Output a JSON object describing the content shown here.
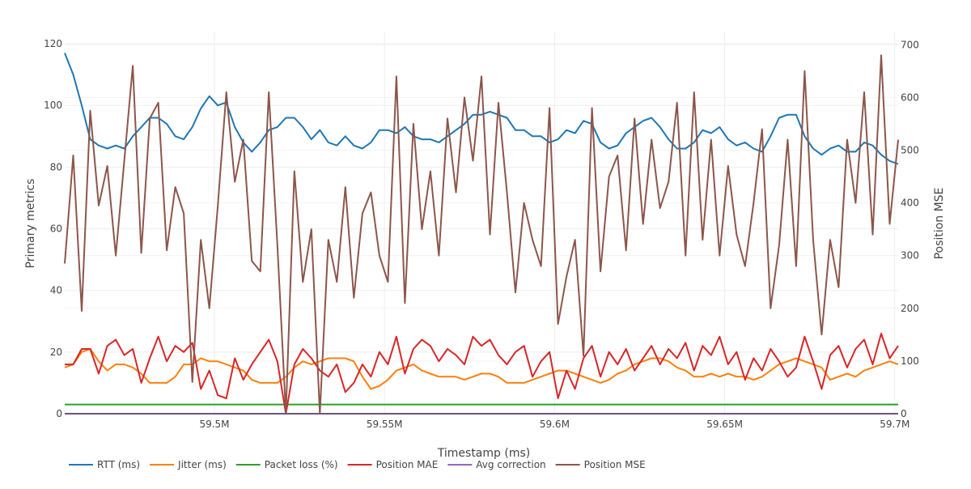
{
  "chart_data": {
    "type": "line",
    "xlabel": "Timestamp (ms)",
    "ylabel": "Primary metrics",
    "y2label": "Position MSE",
    "ylim": [
      0,
      123.7
    ],
    "y2lim": [
      0,
      723.5
    ],
    "xlim": [
      59456000,
      59701000
    ],
    "x_ticks": [
      {
        "value": 59500000,
        "label": "59.5M"
      },
      {
        "value": 59550000,
        "label": "59.55M"
      },
      {
        "value": 59600000,
        "label": "59.6M"
      },
      {
        "value": 59650000,
        "label": "59.65M"
      },
      {
        "value": 59700000,
        "label": "59.7M"
      }
    ],
    "y_ticks": [
      {
        "value": 0,
        "label": "0"
      },
      {
        "value": 20,
        "label": "20"
      },
      {
        "value": 40,
        "label": "40"
      },
      {
        "value": 60,
        "label": "60"
      },
      {
        "value": 80,
        "label": "80"
      },
      {
        "value": 100,
        "label": "100"
      },
      {
        "value": 120,
        "label": "120"
      }
    ],
    "y2_ticks": [
      {
        "value": 0,
        "label": "0"
      },
      {
        "value": 100,
        "label": "100"
      },
      {
        "value": 200,
        "label": "200"
      },
      {
        "value": 300,
        "label": "300"
      },
      {
        "value": 400,
        "label": "400"
      },
      {
        "value": 500,
        "label": "500"
      },
      {
        "value": 600,
        "label": "600"
      },
      {
        "value": 700,
        "label": "700"
      }
    ],
    "grid": true,
    "legend_placement": "bottom-left",
    "x": [
      59456000,
      59458500,
      59461000,
      59463500,
      59466000,
      59468500,
      59471000,
      59473500,
      59476000,
      59478500,
      59481000,
      59483500,
      59486000,
      59488500,
      59491000,
      59493500,
      59496000,
      59498500,
      59501000,
      59503500,
      59506000,
      59508500,
      59511000,
      59513500,
      59516000,
      59518500,
      59521000,
      59523500,
      59526000,
      59528500,
      59531000,
      59533500,
      59536000,
      59538500,
      59541000,
      59543500,
      59546000,
      59548500,
      59551000,
      59553500,
      59556000,
      59558500,
      59561000,
      59563500,
      59566000,
      59568500,
      59571000,
      59573500,
      59576000,
      59578500,
      59581000,
      59583500,
      59586000,
      59588500,
      59591000,
      59593500,
      59596000,
      59598500,
      59601000,
      59603500,
      59606000,
      59608500,
      59611000,
      59613500,
      59616000,
      59618500,
      59621000,
      59623500,
      59626000,
      59628500,
      59631000,
      59633500,
      59636000,
      59638500,
      59641000,
      59643500,
      59646000,
      59648500,
      59651000,
      59653500,
      59656000,
      59658500,
      59661000,
      59663500,
      59666000,
      59668500,
      59671000,
      59673500,
      59676000,
      59678500,
      59681000,
      59683500,
      59686000,
      59688500,
      59691000,
      59693500,
      59696000,
      59698500,
      59701000
    ],
    "series": [
      {
        "name": "RTT (ms)",
        "axis": "y",
        "color": "#1f77b4",
        "values": [
          117,
          110,
          100,
          89,
          87,
          86,
          87,
          86,
          90,
          93,
          96,
          96,
          94,
          90,
          89,
          93,
          99,
          103,
          100,
          101,
          93,
          88,
          85,
          88,
          92,
          93,
          96,
          96,
          93,
          89,
          92,
          88,
          87,
          90,
          87,
          86,
          88,
          92,
          92,
          91,
          93,
          90,
          89,
          89,
          88,
          90,
          92,
          94,
          97,
          97,
          98,
          97,
          96,
          92,
          92,
          90,
          90,
          88,
          89,
          92,
          91,
          95,
          94,
          88,
          86,
          87,
          91,
          93,
          95,
          96,
          93,
          89,
          86,
          86,
          88,
          92,
          91,
          93,
          89,
          87,
          88,
          86,
          85,
          90,
          96,
          97,
          97,
          90,
          86,
          84,
          86,
          87,
          85,
          85,
          88,
          87,
          84,
          82,
          81
        ]
      },
      {
        "name": "Jitter (ms)",
        "axis": "y",
        "color": "#ff7f0e",
        "values": [
          15,
          16,
          20,
          21,
          17,
          14,
          16,
          16,
          15,
          13,
          10,
          10,
          10,
          12,
          16,
          16,
          18,
          17,
          17,
          16,
          15,
          14,
          11,
          10,
          10,
          10,
          12,
          15,
          17,
          16,
          17,
          18,
          18,
          18,
          17,
          12,
          8,
          9,
          11,
          14,
          15,
          16,
          14,
          13,
          12,
          12,
          12,
          11,
          12,
          13,
          13,
          12,
          10,
          10,
          10,
          11,
          12,
          13,
          14,
          14,
          13,
          12,
          11,
          10,
          11,
          13,
          14,
          16,
          17,
          18,
          18,
          17,
          15,
          14,
          12,
          12,
          13,
          12,
          13,
          12,
          12,
          11,
          12,
          14,
          16,
          17,
          18,
          17,
          16,
          15,
          11,
          12,
          13,
          12,
          14,
          15,
          16,
          17,
          16
        ]
      },
      {
        "name": "Packet loss (%)",
        "axis": "y",
        "color": "#2ca02c",
        "values": [
          3,
          3,
          3,
          3,
          3,
          3,
          3,
          3,
          3,
          3,
          3,
          3,
          3,
          3,
          3,
          3,
          3,
          3,
          3,
          3,
          3,
          3,
          3,
          3,
          3,
          3,
          3,
          3,
          3,
          3,
          3,
          3,
          3,
          3,
          3,
          3,
          3,
          3,
          3,
          3,
          3,
          3,
          3,
          3,
          3,
          3,
          3,
          3,
          3,
          3,
          3,
          3,
          3,
          3,
          3,
          3,
          3,
          3,
          3,
          3,
          3,
          3,
          3,
          3,
          3,
          3,
          3,
          3,
          3,
          3,
          3,
          3,
          3,
          3,
          3,
          3,
          3,
          3,
          3,
          3,
          3,
          3,
          3,
          3,
          3,
          3,
          3,
          3,
          3,
          3,
          3,
          3,
          3,
          3,
          3,
          3,
          3,
          3,
          3
        ]
      },
      {
        "name": "Position MAE",
        "axis": "y",
        "color": "#d62728",
        "values": [
          16,
          16,
          21,
          21,
          13,
          22,
          24,
          19,
          21,
          10,
          18,
          25,
          17,
          22,
          20,
          23,
          8,
          14,
          6,
          5,
          18,
          11,
          16,
          20,
          24,
          17,
          0,
          16,
          21,
          18,
          14,
          12,
          16,
          7,
          10,
          16,
          12,
          20,
          16,
          25,
          13,
          21,
          24,
          22,
          17,
          21,
          19,
          16,
          25,
          22,
          24,
          19,
          16,
          20,
          22,
          12,
          17,
          20,
          5,
          14,
          8,
          18,
          22,
          12,
          20,
          16,
          21,
          14,
          18,
          22,
          16,
          21,
          18,
          23,
          14,
          22,
          19,
          25,
          16,
          20,
          11,
          18,
          14,
          21,
          17,
          12,
          15,
          25,
          17,
          8,
          19,
          22,
          15,
          21,
          24,
          16,
          26,
          18,
          22
        ]
      },
      {
        "name": "Avg correction",
        "axis": "y",
        "color": "#9467bd",
        "values": [
          0,
          0,
          0,
          0,
          0,
          0,
          0,
          0,
          0,
          0,
          0,
          0,
          0,
          0,
          0,
          0,
          0,
          0,
          0,
          0,
          0,
          0,
          0,
          0,
          0,
          0,
          0,
          0,
          0,
          0,
          0,
          0,
          0,
          0,
          0,
          0,
          0,
          0,
          0,
          0,
          0,
          0,
          0,
          0,
          0,
          0,
          0,
          0,
          0,
          0,
          0,
          0,
          0,
          0,
          0,
          0,
          0,
          0,
          0,
          0,
          0,
          0,
          0,
          0,
          0,
          0,
          0,
          0,
          0,
          0,
          0,
          0,
          0,
          0,
          0,
          0,
          0,
          0,
          0,
          0,
          0,
          0,
          0,
          0,
          0,
          0,
          0,
          0,
          0,
          0,
          0,
          0,
          0,
          0,
          0,
          0,
          0,
          0,
          0
        ]
      },
      {
        "name": "Position MSE",
        "axis": "y2",
        "color": "#8c564b",
        "values": [
          285,
          490,
          195,
          575,
          395,
          470,
          300,
          480,
          660,
          305,
          560,
          590,
          310,
          430,
          380,
          60,
          330,
          200,
          395,
          610,
          440,
          520,
          290,
          270,
          610,
          320,
          0,
          460,
          250,
          350,
          0,
          330,
          250,
          430,
          220,
          380,
          420,
          300,
          250,
          640,
          210,
          550,
          350,
          460,
          300,
          560,
          420,
          600,
          480,
          640,
          340,
          590,
          420,
          230,
          400,
          330,
          280,
          580,
          170,
          260,
          330,
          110,
          580,
          270,
          450,
          490,
          310,
          560,
          360,
          520,
          390,
          440,
          590,
          300,
          610,
          330,
          520,
          300,
          470,
          340,
          280,
          400,
          540,
          200,
          320,
          520,
          280,
          650,
          330,
          150,
          330,
          240,
          520,
          400,
          610,
          340,
          680,
          360,
          520
        ]
      }
    ]
  }
}
